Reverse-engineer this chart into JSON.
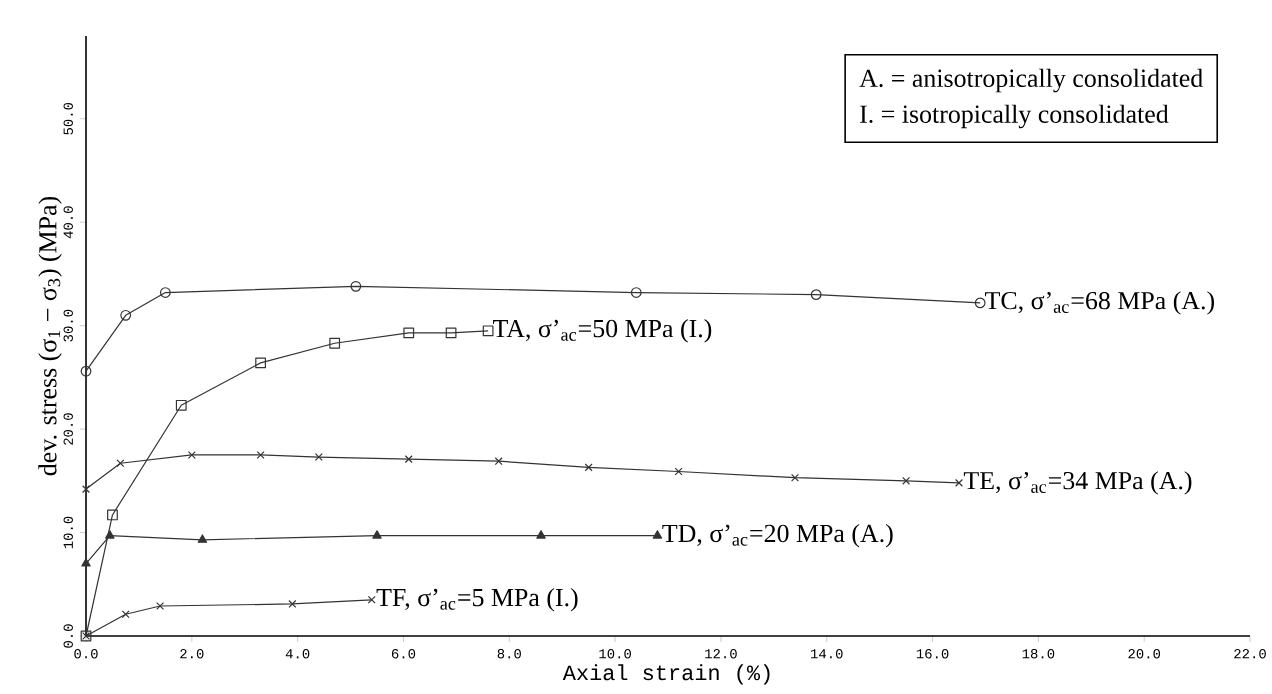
{
  "chart_data": {
    "type": "line",
    "xlabel": "Axial strain (%)",
    "ylabel": "dev. stress (σ$_{1}$ − σ$_{3}$) (MPa)",
    "xlim": [
      0,
      22
    ],
    "ylim": [
      0,
      58
    ],
    "xticks": [
      {
        "value": 0,
        "label": "0.0"
      },
      {
        "value": 2,
        "label": "2.0"
      },
      {
        "value": 4,
        "label": "4.0"
      },
      {
        "value": 6,
        "label": "6.0"
      },
      {
        "value": 8,
        "label": "8.0"
      },
      {
        "value": 10,
        "label": "10.0"
      },
      {
        "value": 12,
        "label": "12.0"
      },
      {
        "value": 14,
        "label": "14.0"
      },
      {
        "value": 16,
        "label": "16.0"
      },
      {
        "value": 18,
        "label": "18.0"
      },
      {
        "value": 20,
        "label": "20.0"
      },
      {
        "value": 22,
        "label": "22.0"
      }
    ],
    "yticks": [
      {
        "value": 0,
        "label": "0.0"
      },
      {
        "value": 10,
        "label": "10.0"
      },
      {
        "value": 20,
        "label": "20.0"
      },
      {
        "value": 30,
        "label": "30.0"
      },
      {
        "value": 40,
        "label": "40.0"
      },
      {
        "value": 50,
        "label": "50.0"
      }
    ],
    "series": [
      {
        "color": "#333333",
        "marker": "circle",
        "x": [
          0,
          0.75,
          1.5,
          5.1,
          10.4,
          13.8,
          16.9
        ],
        "values": [
          25.6,
          31,
          33.2,
          33.8,
          33.2,
          33,
          32.2
        ]
      },
      {
        "color": "#333333",
        "marker": "square",
        "x": [
          0,
          0.5,
          1.8,
          3.3,
          4.7,
          6.1,
          6.9,
          7.6
        ],
        "values": [
          0,
          11.7,
          22.3,
          26.4,
          28.3,
          29.3,
          29.3,
          29.5
        ]
      },
      {
        "color": "#333333",
        "marker": "cross",
        "x": [
          0,
          0.65,
          2,
          3.3,
          4.4,
          6.1,
          7.8,
          9.5,
          11.2,
          13.4,
          15.5,
          16.5
        ],
        "values": [
          14.2,
          16.7,
          17.5,
          17.5,
          17.3,
          17.1,
          16.9,
          16.3,
          15.9,
          15.3,
          15,
          14.8
        ]
      },
      {
        "color": "#333333",
        "marker": "triangle",
        "x": [
          0,
          0.45,
          2.2,
          5.5,
          8.6,
          10.8
        ],
        "values": [
          7,
          9.7,
          9.3,
          9.7,
          9.7,
          9.7
        ]
      },
      {
        "color": "#333333",
        "marker": "cross",
        "x": [
          0,
          0.75,
          1.4,
          3.9,
          5.4
        ],
        "values": [
          0,
          2.1,
          2.9,
          3.1,
          3.5
        ]
      }
    ],
    "annotations": [
      {
        "text": "TC, σ’$_{ac}$=68 MPa (A.)",
        "x": 16.9,
        "y": 32.2
      },
      {
        "text": "TA, σ’$_{ac}$=50 MPa (I.)",
        "x": 7.6,
        "y": 29.5
      },
      {
        "text": "TE, σ’$_{ac}$=34 MPa (A.)",
        "x": 16.5,
        "y": 14.8
      },
      {
        "text": "TD, σ’$_{ac}$=20 MPa (A.)",
        "x": 10.8,
        "y": 9.7
      },
      {
        "text": "TF, σ’$_{ac}$=5 MPa (I.)",
        "x": 5.4,
        "y": 3.5
      },
      "A. = anisotropically consolidated",
      "I.  = isotropically consolidated"
    ]
  }
}
